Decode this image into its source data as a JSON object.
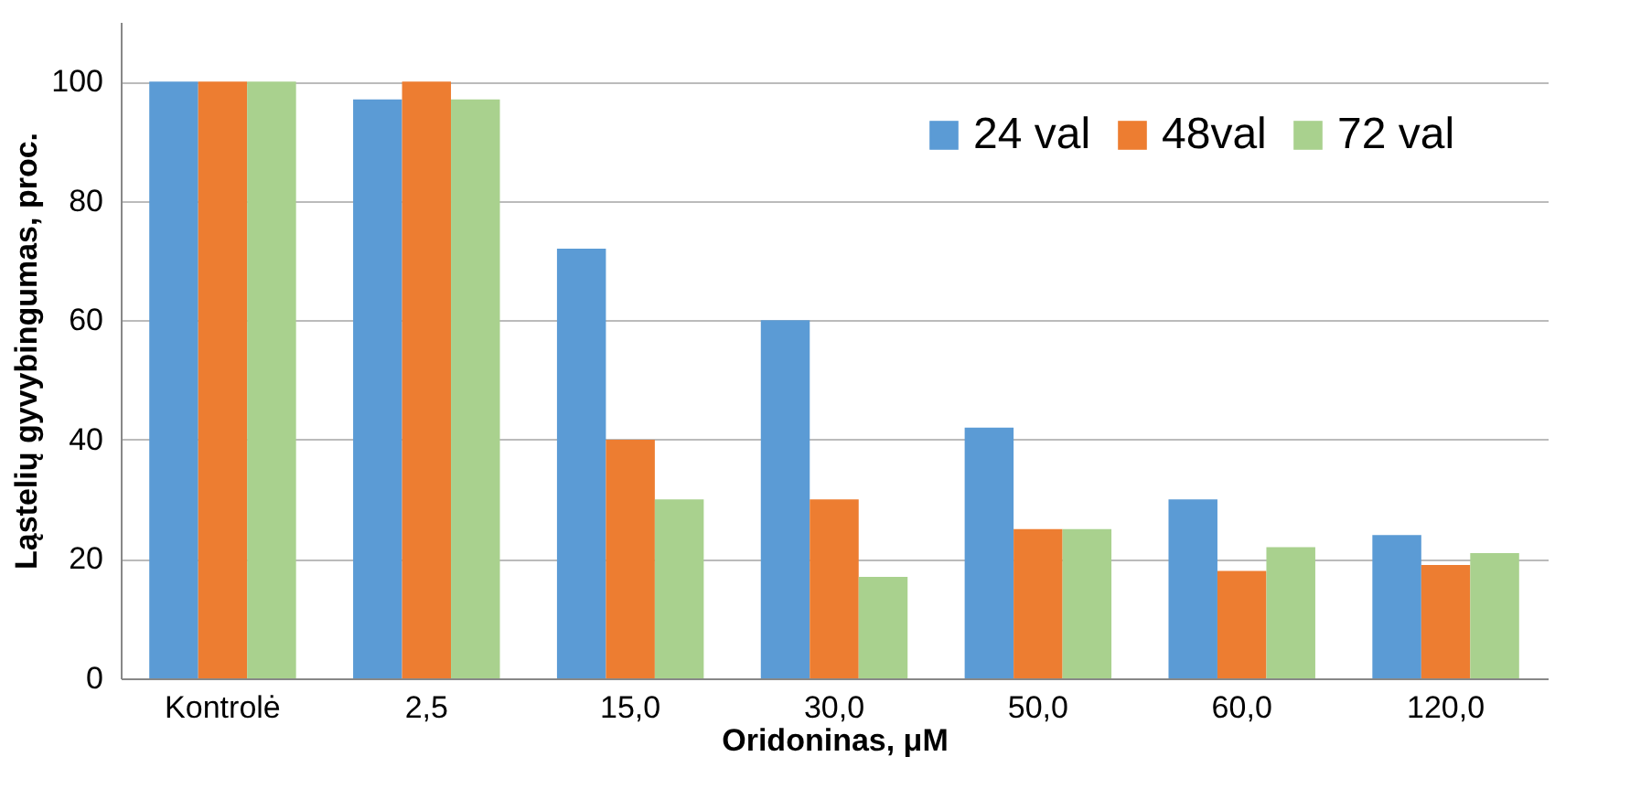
{
  "chart_data": {
    "type": "bar",
    "xlabel": "Oridoninas, μM",
    "ylabel": "Ląstelių gyvybingumas, proc.",
    "categories": [
      "Kontrolė",
      "2,5",
      "15,0",
      "30,0",
      "50,0",
      "60,0",
      "120,0"
    ],
    "series": [
      {
        "name": "24 val",
        "color": "#5b9bd5",
        "values": [
          100,
          97,
          72,
          60,
          42,
          30,
          24
        ]
      },
      {
        "name": "48val",
        "color": "#ed7d31",
        "values": [
          100,
          100,
          40,
          30,
          25,
          18,
          19
        ]
      },
      {
        "name": "72 val",
        "color": "#a9d18e",
        "values": [
          100,
          97,
          30,
          17,
          25,
          22,
          21
        ]
      }
    ],
    "ylim": [
      0,
      110
    ],
    "yticks": [
      0,
      20,
      40,
      60,
      80,
      100
    ],
    "grid": "y",
    "legend": "top right"
  }
}
